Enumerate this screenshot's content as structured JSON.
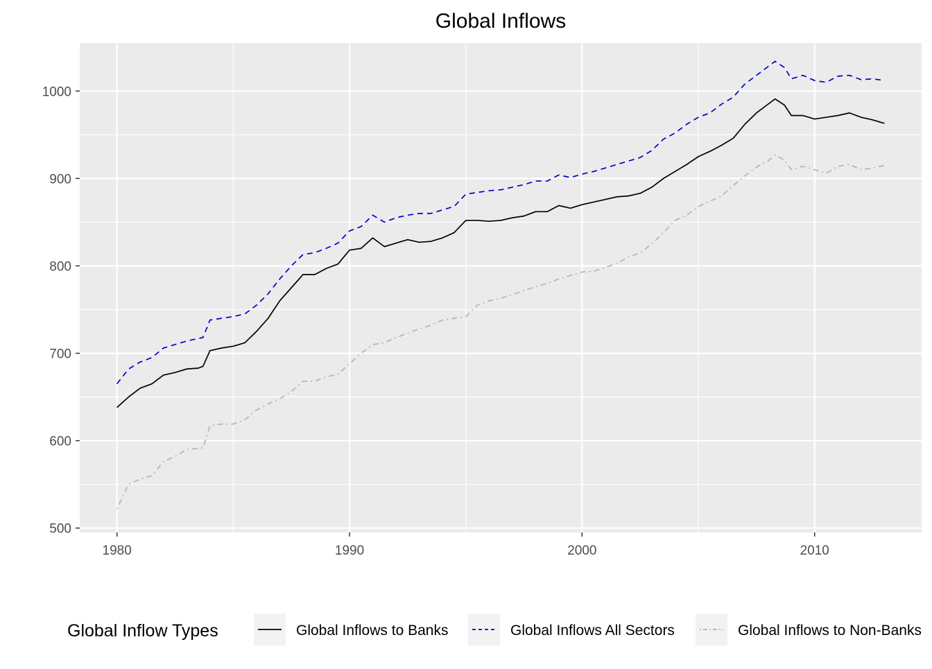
{
  "chart_data": {
    "type": "line",
    "title": "Global Inflows",
    "xlabel": "",
    "ylabel": "",
    "xlim": [
      1978.4,
      2014.6
    ],
    "ylim": [
      495,
      1055
    ],
    "x_ticks": [
      1980,
      1990,
      2000,
      2010
    ],
    "y_ticks": [
      500,
      600,
      700,
      800,
      900,
      1000
    ],
    "grid": true,
    "legend": {
      "title": "Global Inflow Types",
      "position": "bottom"
    },
    "series": [
      {
        "name": "Global Inflows to Banks",
        "color": "#000000",
        "dash": "solid",
        "x": [
          1980.0,
          1980.5,
          1981.0,
          1981.5,
          1982.0,
          1982.5,
          1983.0,
          1983.5,
          1983.7,
          1984.0,
          1984.5,
          1985.0,
          1985.5,
          1986.0,
          1986.5,
          1987.0,
          1987.5,
          1988.0,
          1988.5,
          1989.0,
          1989.5,
          1990.0,
          1990.5,
          1991.0,
          1991.5,
          1992.0,
          1992.5,
          1993.0,
          1993.5,
          1994.0,
          1994.5,
          1995.0,
          1995.5,
          1996.0,
          1996.5,
          1997.0,
          1997.5,
          1998.0,
          1998.5,
          1999.0,
          1999.5,
          2000.0,
          2000.5,
          2001.0,
          2001.5,
          2002.0,
          2002.5,
          2003.0,
          2003.5,
          2004.0,
          2004.5,
          2005.0,
          2005.5,
          2006.0,
          2006.5,
          2007.0,
          2007.5,
          2008.0,
          2008.3,
          2008.7,
          2009.0,
          2009.5,
          2010.0,
          2010.5,
          2011.0,
          2011.5,
          2012.0,
          2012.5,
          2013.0
        ],
        "y": [
          638,
          650,
          660,
          665,
          675,
          678,
          682,
          683,
          685,
          703,
          706,
          708,
          712,
          725,
          740,
          760,
          775,
          790,
          790,
          797,
          802,
          818,
          820,
          832,
          822,
          826,
          830,
          827,
          828,
          832,
          838,
          852,
          852,
          851,
          852,
          855,
          857,
          862,
          862,
          869,
          866,
          870,
          873,
          876,
          879,
          880,
          883,
          890,
          900,
          908,
          916,
          925,
          931,
          938,
          946,
          962,
          975,
          985,
          991,
          984,
          972,
          972,
          968,
          970,
          972,
          975,
          970,
          967,
          963
        ]
      },
      {
        "name": "Global Inflows All Sectors",
        "color": "#0000cc",
        "dash": "dashed",
        "x": [
          1980.0,
          1980.5,
          1981.0,
          1981.5,
          1982.0,
          1982.5,
          1983.0,
          1983.5,
          1983.7,
          1984.0,
          1984.5,
          1985.0,
          1985.5,
          1986.0,
          1986.5,
          1987.0,
          1987.5,
          1988.0,
          1988.5,
          1989.0,
          1989.5,
          1990.0,
          1990.5,
          1991.0,
          1991.5,
          1992.0,
          1992.5,
          1993.0,
          1993.5,
          1994.0,
          1994.5,
          1995.0,
          1995.5,
          1996.0,
          1996.5,
          1997.0,
          1997.5,
          1998.0,
          1998.5,
          1999.0,
          1999.5,
          2000.0,
          2000.5,
          2001.0,
          2001.5,
          2002.0,
          2002.5,
          2003.0,
          2003.5,
          2004.0,
          2004.5,
          2005.0,
          2005.5,
          2006.0,
          2006.5,
          2007.0,
          2007.5,
          2008.0,
          2008.3,
          2008.7,
          2009.0,
          2009.5,
          2010.0,
          2010.5,
          2011.0,
          2011.5,
          2012.0,
          2012.5,
          2013.0
        ],
        "y": [
          665,
          682,
          690,
          695,
          706,
          710,
          714,
          717,
          718,
          738,
          740,
          742,
          745,
          755,
          768,
          785,
          800,
          813,
          815,
          820,
          826,
          840,
          845,
          858,
          850,
          855,
          858,
          860,
          860,
          864,
          868,
          882,
          884,
          886,
          887,
          890,
          893,
          897,
          897,
          904,
          901,
          905,
          908,
          912,
          916,
          920,
          924,
          932,
          945,
          952,
          962,
          970,
          975,
          985,
          993,
          1008,
          1018,
          1028,
          1034,
          1027,
          1014,
          1018,
          1012,
          1010,
          1017,
          1018,
          1013,
          1014,
          1012
        ]
      },
      {
        "name": "Global Inflows to Non-Banks",
        "color": "#b3b3b3",
        "dash": "dashdot",
        "x": [
          1980.0,
          1980.5,
          1981.0,
          1981.5,
          1982.0,
          1982.5,
          1983.0,
          1983.5,
          1983.7,
          1984.0,
          1984.5,
          1985.0,
          1985.5,
          1986.0,
          1986.5,
          1987.0,
          1987.5,
          1988.0,
          1988.5,
          1989.0,
          1989.5,
          1990.0,
          1990.5,
          1991.0,
          1991.5,
          1992.0,
          1992.5,
          1993.0,
          1993.5,
          1994.0,
          1994.5,
          1995.0,
          1995.5,
          1996.0,
          1996.5,
          1997.0,
          1997.5,
          1998.0,
          1998.5,
          1999.0,
          1999.5,
          2000.0,
          2000.5,
          2001.0,
          2001.5,
          2002.0,
          2002.5,
          2003.0,
          2003.5,
          2004.0,
          2004.5,
          2005.0,
          2005.5,
          2006.0,
          2006.5,
          2007.0,
          2007.5,
          2008.0,
          2008.3,
          2008.7,
          2009.0,
          2009.5,
          2010.0,
          2010.5,
          2011.0,
          2011.5,
          2012.0,
          2012.5,
          2013.0
        ],
        "y": [
          522,
          550,
          556,
          560,
          576,
          582,
          590,
          591,
          592,
          617,
          619,
          619,
          624,
          635,
          642,
          648,
          656,
          668,
          668,
          673,
          676,
          688,
          700,
          710,
          712,
          718,
          723,
          728,
          732,
          738,
          740,
          742,
          755,
          760,
          763,
          767,
          772,
          776,
          780,
          785,
          789,
          793,
          794,
          798,
          803,
          810,
          815,
          825,
          838,
          852,
          858,
          868,
          874,
          880,
          892,
          903,
          913,
          920,
          927,
          921,
          910,
          914,
          910,
          906,
          914,
          916,
          910,
          912,
          915
        ]
      }
    ]
  }
}
